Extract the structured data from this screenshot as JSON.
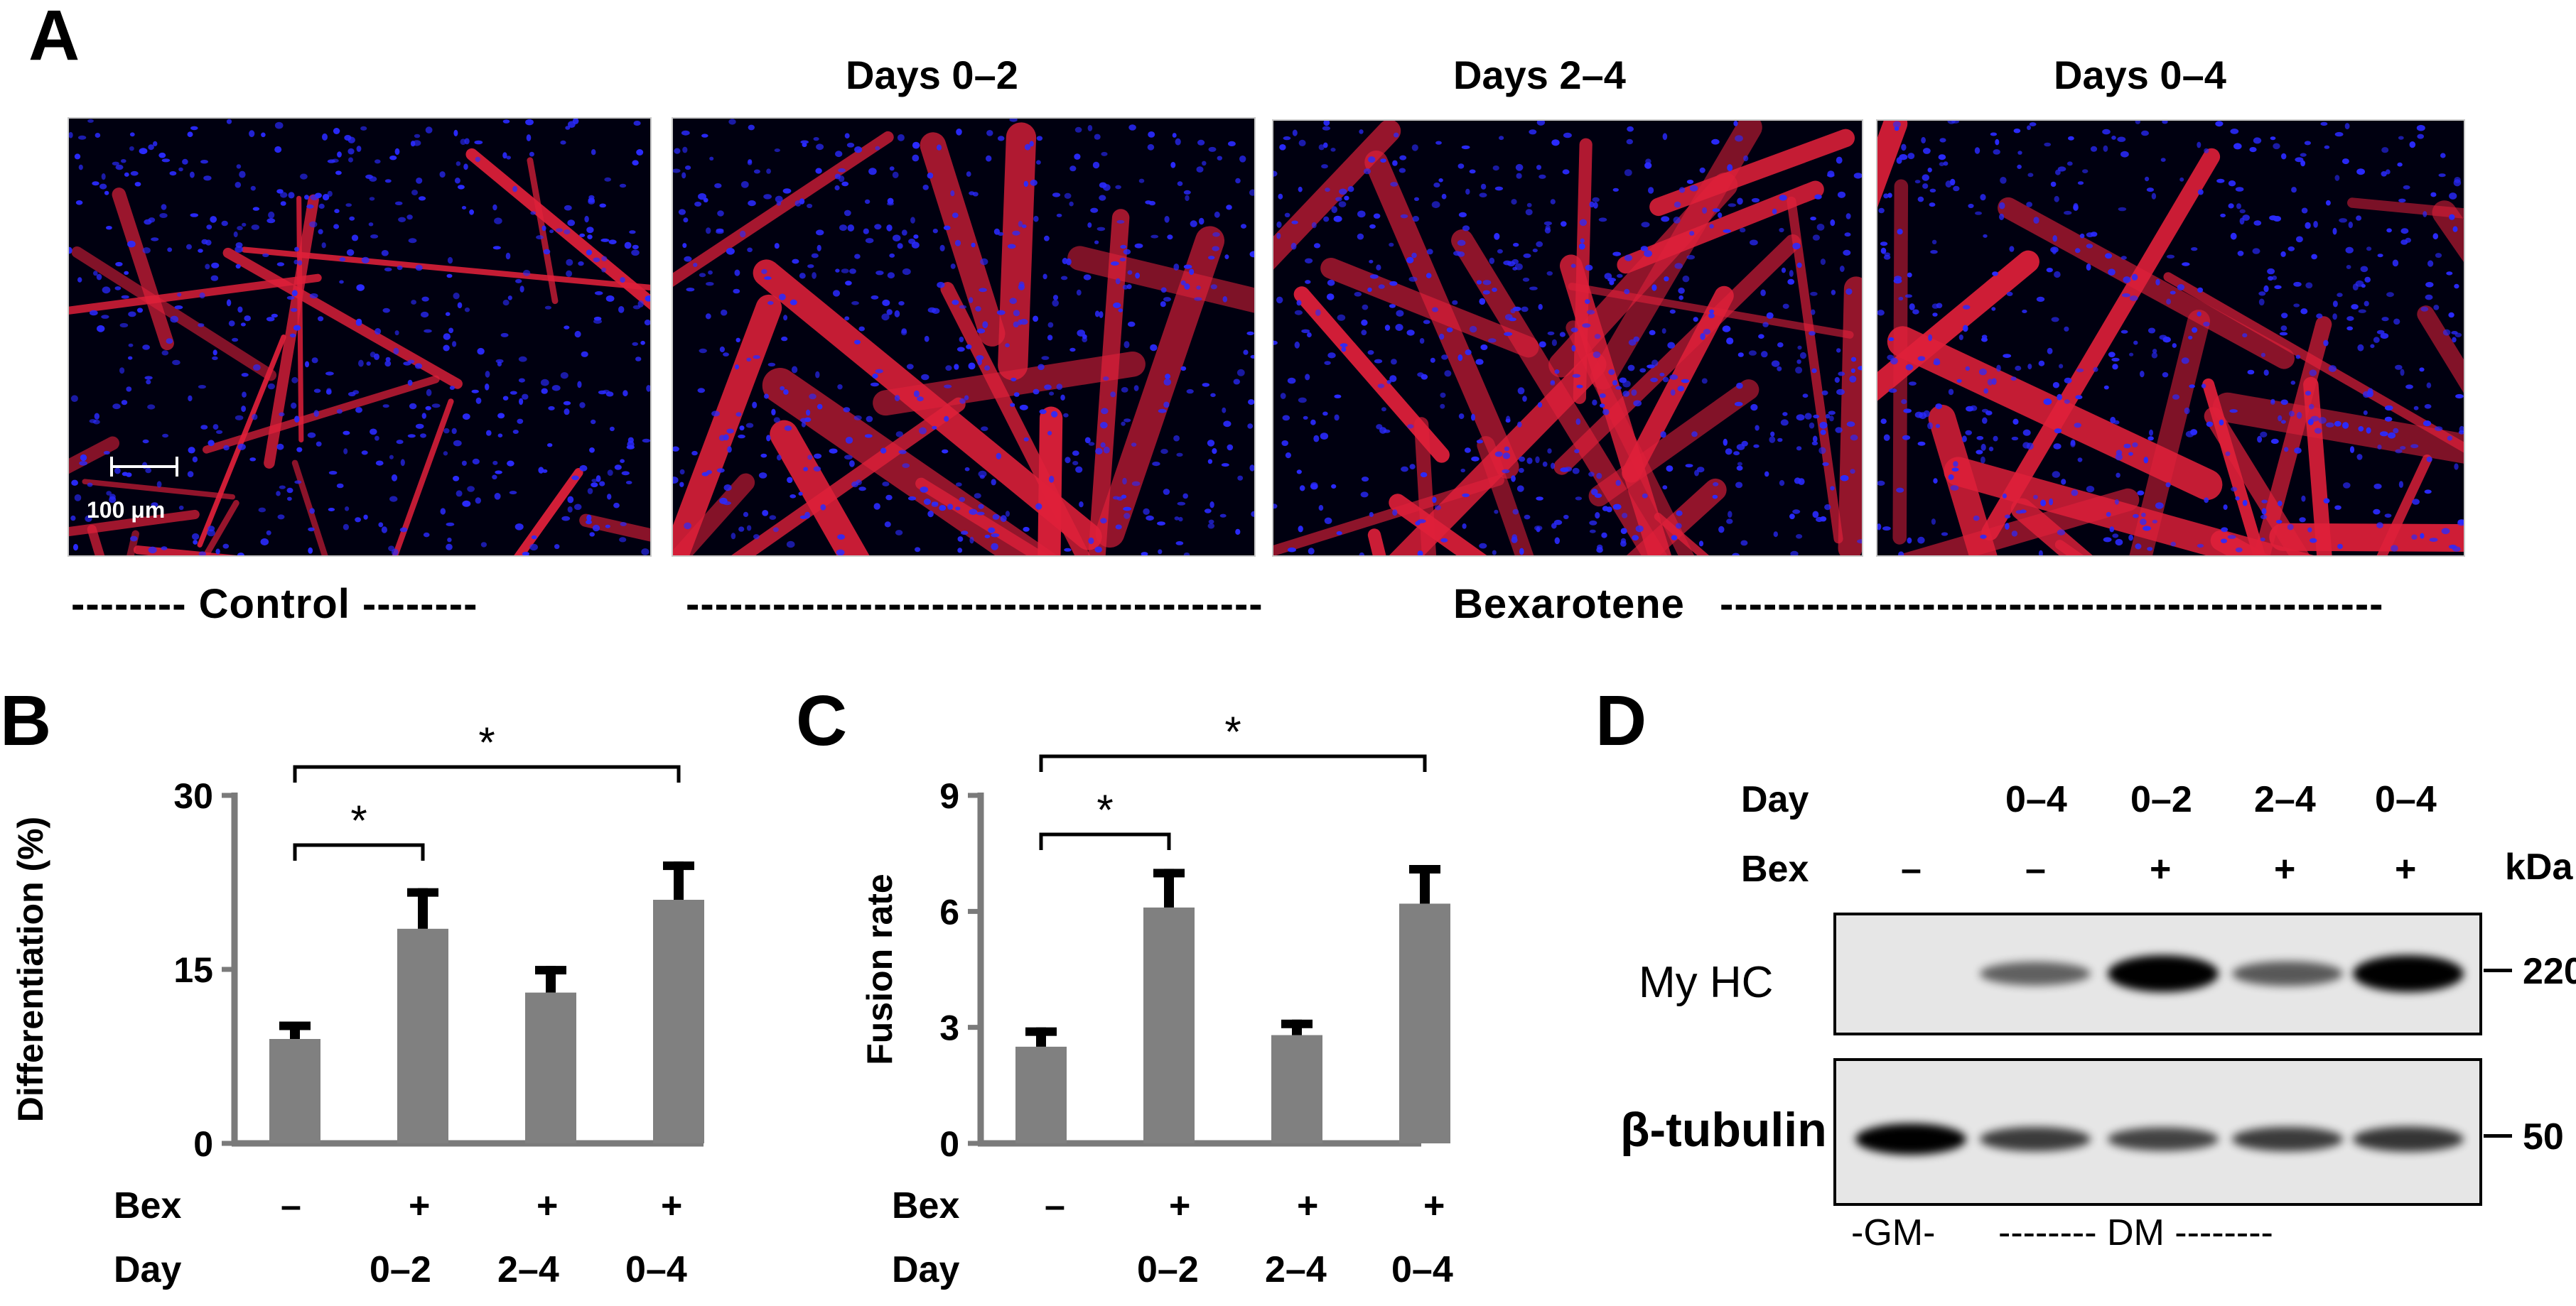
{
  "panel_a": {
    "label": "A",
    "titles": [
      "",
      "Days 0–2",
      "Days 2–4",
      "Days 0–4"
    ],
    "scale_bar": "100 μm",
    "control_caption": "-------- Control --------",
    "bexarotene_caption_left": "----------------------------------------",
    "bexarotene_label": "Bexarotene",
    "bexarotene_caption_right": "----------------------------------------------",
    "colors": {
      "background": "#000010",
      "nuclei": "#2a2aff",
      "myotubes": "#e0203a"
    }
  },
  "panel_b": {
    "label": "B",
    "row_labels": {
      "bex": "Bex",
      "day": "Day"
    },
    "bex_marks": [
      "–",
      "+",
      "+",
      "+"
    ],
    "day_marks": [
      "",
      "0–2",
      "2–4",
      "0–4"
    ],
    "sig": [
      "*",
      "*"
    ]
  },
  "panel_c": {
    "label": "C",
    "row_labels": {
      "bex": "Bex",
      "day": "Day"
    },
    "bex_marks": [
      "–",
      "+",
      "+",
      "+"
    ],
    "day_marks": [
      "",
      "0–2",
      "2–4",
      "0–4"
    ],
    "sig": [
      "*",
      "*"
    ]
  },
  "panel_d": {
    "label": "D",
    "row_day": "Day",
    "row_bex": "Bex",
    "kda": "kDa",
    "day_marks": [
      "",
      "0–4",
      "0–2",
      "2–4",
      "0–4"
    ],
    "bex_marks": [
      "–",
      "–",
      "+",
      "+",
      "+"
    ],
    "myhc_label": "My HC",
    "tubulin_label": "β-tubulin",
    "marker_220": "220",
    "marker_50": "50",
    "gm_label": "-GM-",
    "dm_label": "-------- DM --------",
    "myhc_intensity": [
      0,
      0.35,
      1.0,
      0.4,
      1.0
    ],
    "tubulin_intensity": [
      1.0,
      0.6,
      0.55,
      0.6,
      0.65
    ]
  },
  "chart_data": [
    {
      "type": "bar",
      "categories": [
        "–",
        "0–2",
        "2–4",
        "0–4"
      ],
      "values": [
        9,
        18.5,
        13,
        21
      ],
      "errors": [
        1.5,
        3.5,
        2.3,
        3.3
      ],
      "ylabel": "Differentiation (%)",
      "ylim": [
        0,
        30
      ],
      "yticks": [
        "0",
        "15",
        "30"
      ],
      "color": "#808080"
    },
    {
      "type": "bar",
      "categories": [
        "–",
        "0–2",
        "2–4",
        "0–4"
      ],
      "values": [
        2.5,
        6.1,
        2.8,
        6.2
      ],
      "errors": [
        0.5,
        1.0,
        0.4,
        1.0
      ],
      "ylabel": "Fusion rate",
      "ylim": [
        0,
        9
      ],
      "yticks": [
        "0",
        "3",
        "6",
        "9"
      ],
      "color": "#808080"
    }
  ]
}
